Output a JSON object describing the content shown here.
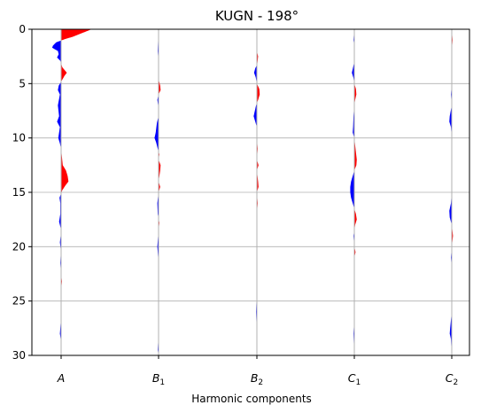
{
  "chart_data": {
    "type": "wiggle",
    "title": "KUGN - 198°",
    "xlabel": "Harmonic components",
    "ylabel": "",
    "categories": [
      {
        "main": "A",
        "sub": ""
      },
      {
        "main": "B",
        "sub": "1"
      },
      {
        "main": "B",
        "sub": "2"
      },
      {
        "main": "C",
        "sub": "1"
      },
      {
        "main": "C",
        "sub": "2"
      }
    ],
    "y_ticks": [
      0,
      5,
      10,
      15,
      20,
      25,
      30
    ],
    "ylim": [
      30,
      0
    ],
    "y_inverted": true,
    "grid": {
      "horizontal": true,
      "vertical": false
    },
    "colors": {
      "positive": "#ff0000",
      "negative": "#0000ff",
      "baseline": "#b0b0b0",
      "grid": "#b0b0b0"
    },
    "traces": [
      {
        "name": "A",
        "depth": [
          0,
          0.3,
          0.7,
          0.9,
          1.2,
          1.5,
          1.7,
          2.0,
          2.3,
          2.6,
          2.9,
          3.5,
          4.0,
          4.3,
          4.7,
          5.2,
          5.6,
          6.0,
          7.0,
          8.0,
          8.5,
          9.0,
          10.0,
          10.5,
          11.0,
          12.5,
          13.0,
          13.5,
          14.0,
          14.4,
          14.8,
          15.5,
          16.0,
          17.0,
          17.7,
          18.3,
          19.0,
          19.6,
          20.2,
          20.8,
          21.5,
          22.5,
          23.2,
          24.0,
          26.0,
          28.0,
          28.5,
          30.0
        ],
        "value": [
          0.75,
          0.55,
          0.28,
          0.1,
          -0.12,
          -0.2,
          -0.22,
          -0.08,
          -0.06,
          -0.1,
          -0.02,
          0.03,
          0.14,
          0.08,
          0.02,
          -0.06,
          -0.08,
          -0.03,
          -0.08,
          -0.05,
          -0.1,
          -0.03,
          -0.07,
          -0.03,
          0.0,
          0.04,
          0.12,
          0.16,
          0.18,
          0.1,
          0.03,
          -0.04,
          -0.02,
          -0.02,
          -0.05,
          -0.01,
          -0.01,
          -0.03,
          -0.01,
          -0.01,
          -0.02,
          0.0,
          0.02,
          0.0,
          0.01,
          -0.03,
          -0.01,
          0.0
        ]
      },
      {
        "name": "B1",
        "depth": [
          0,
          1.0,
          2.0,
          3.0,
          4.0,
          4.6,
          5.2,
          5.6,
          6.0,
          6.5,
          7.0,
          8.0,
          8.6,
          9.5,
          10.0,
          10.4,
          11.0,
          11.5,
          12.0,
          12.5,
          13.0,
          14.0,
          14.5,
          15.0,
          16.0,
          17.0,
          17.8,
          18.5,
          20.0,
          21.0,
          22.0,
          23.0,
          24.0,
          26.0,
          28.0,
          29.5,
          30.0
        ],
        "value": [
          0.0,
          -0.01,
          -0.02,
          0.0,
          0.01,
          0.0,
          0.04,
          0.05,
          0.0,
          -0.03,
          -0.01,
          0.0,
          -0.04,
          -0.07,
          -0.1,
          -0.06,
          -0.02,
          0.02,
          0.0,
          0.05,
          0.04,
          0.0,
          0.04,
          0.0,
          -0.03,
          -0.02,
          0.02,
          0.0,
          -0.03,
          -0.01,
          0.0,
          0.01,
          0.0,
          -0.01,
          0.0,
          -0.02,
          0.0
        ]
      },
      {
        "name": "B2",
        "depth": [
          0,
          0.5,
          1.0,
          2.0,
          2.5,
          3.2,
          3.6,
          4.0,
          4.4,
          5.0,
          5.5,
          6.0,
          6.5,
          7.0,
          7.5,
          8.0,
          8.5,
          9.0,
          10.0,
          11.0,
          12.0,
          12.5,
          13.0,
          14.0,
          14.5,
          15.0,
          16.0,
          17.0,
          18.0,
          19.0,
          20.0,
          22.0,
          24.0,
          26.0,
          28.0,
          30.0
        ],
        "value": [
          0.0,
          0.0,
          0.01,
          0.0,
          0.03,
          0.01,
          -0.04,
          -0.07,
          -0.03,
          0.0,
          0.06,
          0.07,
          0.03,
          -0.02,
          -0.05,
          -0.08,
          -0.04,
          0.0,
          0.0,
          0.02,
          0.0,
          0.04,
          0.0,
          0.03,
          0.04,
          0.0,
          0.02,
          0.0,
          0.01,
          -0.01,
          0.0,
          0.01,
          0.0,
          -0.02,
          0.0,
          0.0
        ]
      },
      {
        "name": "C1",
        "depth": [
          0,
          0.5,
          1.0,
          1.5,
          2.0,
          3.0,
          3.5,
          4.0,
          4.5,
          5.0,
          5.5,
          6.0,
          6.5,
          7.0,
          8.0,
          9.0,
          9.5,
          10.0,
          11.0,
          12.0,
          12.5,
          13.0,
          14.0,
          14.5,
          15.0,
          15.5,
          16.0,
          16.5,
          17.0,
          17.5,
          18.0,
          19.0,
          20.0,
          20.5,
          21.0,
          22.0,
          24.0,
          26.0,
          28.0,
          29.0,
          30.0
        ],
        "value": [
          0.0,
          -0.01,
          -0.02,
          0.0,
          0.0,
          0.0,
          -0.03,
          -0.06,
          -0.02,
          0.0,
          0.04,
          0.05,
          0.02,
          0.0,
          -0.02,
          -0.03,
          -0.04,
          0.0,
          0.03,
          0.06,
          0.05,
          0.0,
          -0.08,
          -0.1,
          -0.1,
          -0.08,
          -0.04,
          0.0,
          0.04,
          0.06,
          0.02,
          -0.02,
          0.0,
          0.03,
          0.0,
          -0.01,
          0.0,
          0.01,
          -0.02,
          -0.01,
          0.0
        ]
      },
      {
        "name": "C2",
        "depth": [
          0,
          0.5,
          1.0,
          1.5,
          2.0,
          3.0,
          4.0,
          5.0,
          6.0,
          7.0,
          8.0,
          8.5,
          9.0,
          10.0,
          11.0,
          12.0,
          13.0,
          14.0,
          15.0,
          16.0,
          16.7,
          17.3,
          18.0,
          19.0,
          20.0,
          21.0,
          22.0,
          24.0,
          26.0,
          27.5,
          28.0,
          28.5,
          30.0
        ],
        "value": [
          0.0,
          0.01,
          0.02,
          0.01,
          0.0,
          0.0,
          0.0,
          0.0,
          -0.02,
          0.0,
          -0.05,
          -0.06,
          -0.02,
          0.0,
          0.0,
          0.0,
          0.0,
          0.0,
          0.0,
          -0.02,
          -0.06,
          -0.05,
          0.0,
          0.03,
          0.0,
          -0.02,
          0.0,
          -0.01,
          0.0,
          -0.04,
          -0.05,
          -0.02,
          0.0
        ]
      }
    ]
  }
}
